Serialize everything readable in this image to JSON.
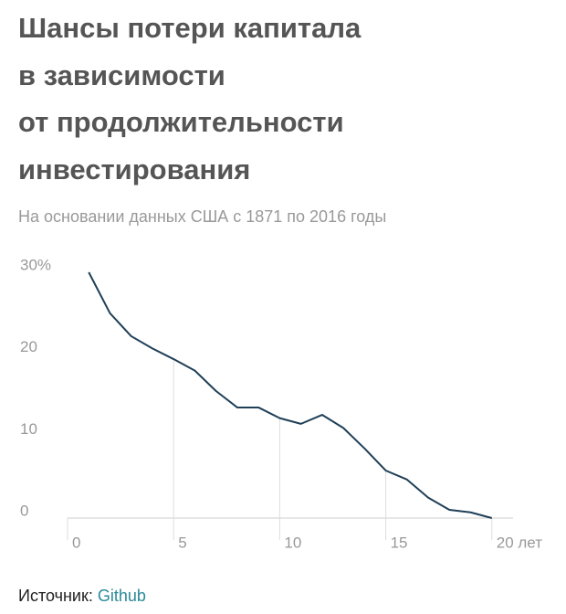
{
  "chart_data": {
    "type": "line",
    "title_lines": [
      "Шансы потери капитала",
      "в зависимости",
      "от продолжительности",
      "инвестирования"
    ],
    "subtitle": "На основании данных США с 1871 по 2016 годы",
    "x": [
      1,
      2,
      3,
      4,
      5,
      6,
      7,
      8,
      9,
      10,
      11,
      12,
      13,
      14,
      15,
      16,
      17,
      18,
      19,
      20
    ],
    "series": [
      {
        "name": "Шансы потери капитала",
        "color": "#1f3f57",
        "values": [
          30,
          25,
          22.2,
          20.7,
          19.4,
          18,
          15.5,
          13.5,
          13.5,
          12.2,
          11.5,
          12.6,
          11,
          8.5,
          5.8,
          4.7,
          2.5,
          1,
          0.7,
          0
        ]
      }
    ],
    "xlim": [
      0,
      21
    ],
    "xticks": [
      0,
      5,
      10,
      15,
      {
        "value": 20,
        "label": "20 лет"
      }
    ],
    "ylim": [
      0,
      30
    ],
    "yticks": [
      0,
      10,
      20,
      {
        "value": 30,
        "label": "30%"
      }
    ],
    "source_label": "Источник:",
    "source_link": "Github"
  }
}
